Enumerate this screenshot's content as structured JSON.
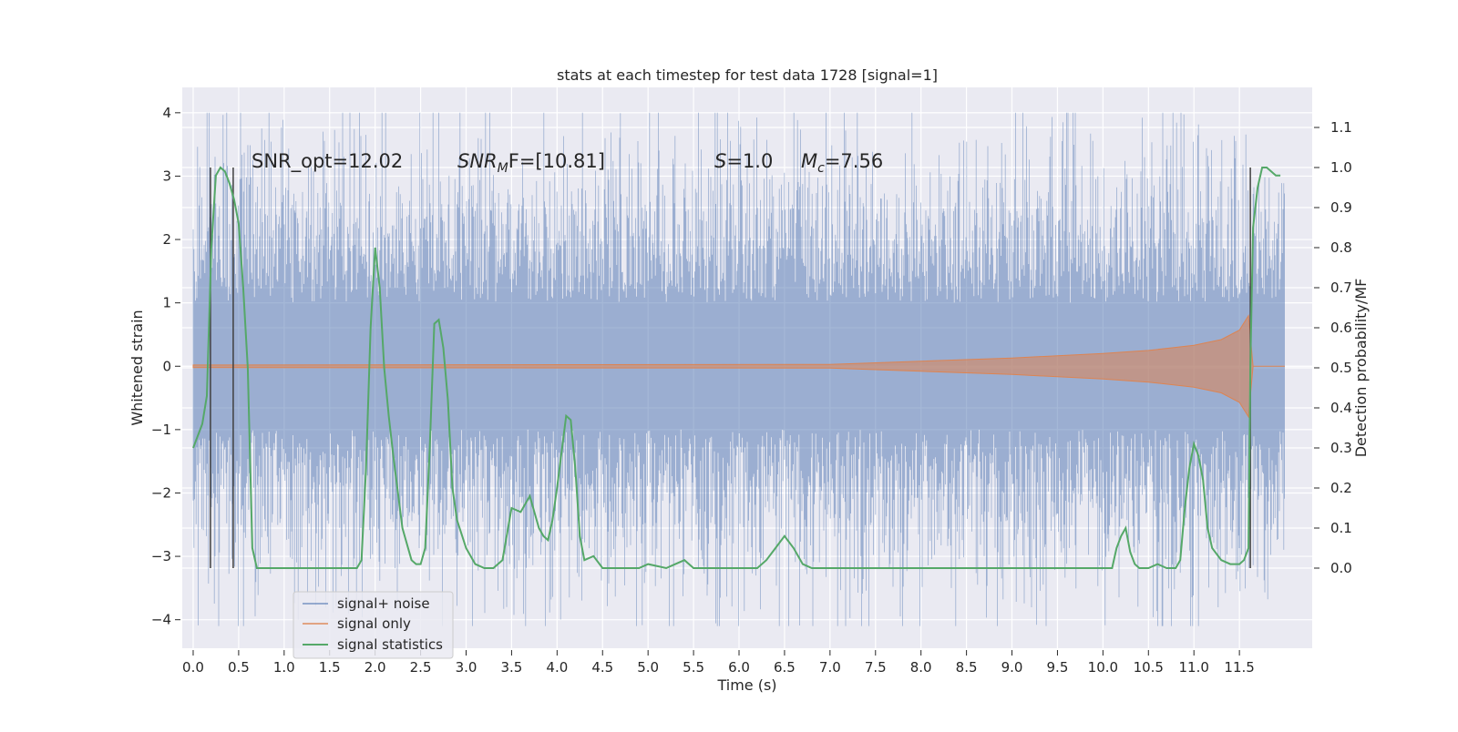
{
  "chart_data": {
    "type": "line",
    "title": "stats at each timestep for test data 1728 [signal=1]",
    "xlabel": "Time (s)",
    "ylabel": "Whitened strain",
    "ylabel_right": "Detection probability/MF",
    "xlim": [
      -0.12,
      12.3
    ],
    "ylim": [
      -4.45,
      4.4
    ],
    "ylim_right": [
      -0.2,
      1.2
    ],
    "x_ticks": [
      "0.0",
      "0.5",
      "1.0",
      "1.5",
      "2.0",
      "2.5",
      "3.0",
      "3.5",
      "4.0",
      "4.5",
      "5.0",
      "5.5",
      "6.0",
      "6.5",
      "7.0",
      "7.5",
      "8.0",
      "8.5",
      "9.0",
      "9.5",
      "10.0",
      "10.5",
      "11.0",
      "11.5"
    ],
    "y_ticks": [
      "4",
      "3",
      "2",
      "1",
      "0",
      "−1",
      "−2",
      "−3",
      "−4"
    ],
    "y_ticks_right": [
      "1.1",
      "1.0",
      "0.9",
      "0.8",
      "0.7",
      "0.6",
      "0.5",
      "0.4",
      "0.3",
      "0.2",
      "0.1",
      "0.0"
    ],
    "grid": true,
    "legend_placement": "lower-left",
    "annotations": {
      "snr_opt": "SNR_opt=12.02",
      "snr_mf_prefix": "SNR",
      "snr_mf_sub": "M",
      "snr_mf_suffix": "F=[10.81]",
      "s_label": "S",
      "s_value": "=1.0",
      "mc_label": "M",
      "mc_sub": "c",
      "mc_value": "=7.56"
    },
    "vertical_markers_x": [
      0.19,
      0.44,
      11.62
    ],
    "series": [
      {
        "name": "signal+ noise",
        "color": "#4c72b0",
        "x_range": [
          0.0,
          12.0
        ],
        "y_range": [
          -4.1,
          4.0
        ],
        "envelope_sigma": 1.0
      },
      {
        "name": "signal only",
        "color": "#dd8452",
        "x": [
          0.0,
          7.0,
          8.0,
          9.0,
          10.0,
          10.5,
          11.0,
          11.3,
          11.5,
          11.6,
          11.65,
          12.0
        ],
        "amplitude": [
          0.02,
          0.03,
          0.08,
          0.13,
          0.2,
          0.25,
          0.33,
          0.42,
          0.57,
          0.8,
          0.0,
          0.0
        ]
      },
      {
        "name": "signal statistics",
        "color": "#55a868",
        "axis": "right",
        "x": [
          0.0,
          0.1,
          0.15,
          0.2,
          0.25,
          0.3,
          0.35,
          0.4,
          0.45,
          0.5,
          0.55,
          0.6,
          0.65,
          0.7,
          0.8,
          1.0,
          1.2,
          1.4,
          1.6,
          1.8,
          1.85,
          1.9,
          1.95,
          2.0,
          2.05,
          2.1,
          2.15,
          2.2,
          2.3,
          2.4,
          2.45,
          2.5,
          2.55,
          2.6,
          2.65,
          2.7,
          2.75,
          2.8,
          2.85,
          2.9,
          3.0,
          3.1,
          3.2,
          3.3,
          3.4,
          3.5,
          3.6,
          3.7,
          3.8,
          3.85,
          3.9,
          3.95,
          4.0,
          4.1,
          4.15,
          4.2,
          4.25,
          4.3,
          4.4,
          4.5,
          4.6,
          4.7,
          4.8,
          4.9,
          5.0,
          5.2,
          5.3,
          5.4,
          5.5,
          5.6,
          6.0,
          6.2,
          6.3,
          6.4,
          6.5,
          6.6,
          6.7,
          6.8,
          7.0,
          7.5,
          8.0,
          9.0,
          10.0,
          10.1,
          10.15,
          10.2,
          10.25,
          10.3,
          10.35,
          10.4,
          10.5,
          10.6,
          10.7,
          10.8,
          10.85,
          10.9,
          10.95,
          11.0,
          11.05,
          11.1,
          11.15,
          11.2,
          11.3,
          11.4,
          11.5,
          11.55,
          11.6,
          11.62,
          11.65,
          11.7,
          11.75,
          11.8,
          11.85,
          11.9,
          11.95
        ],
        "y": [
          0.3,
          0.36,
          0.43,
          0.8,
          0.98,
          1.0,
          0.99,
          0.96,
          0.92,
          0.86,
          0.7,
          0.5,
          0.05,
          0.0,
          0.0,
          0.0,
          0.0,
          0.0,
          0.0,
          0.0,
          0.02,
          0.25,
          0.6,
          0.8,
          0.7,
          0.5,
          0.38,
          0.28,
          0.1,
          0.02,
          0.01,
          0.01,
          0.05,
          0.3,
          0.61,
          0.62,
          0.55,
          0.42,
          0.2,
          0.12,
          0.05,
          0.01,
          0.0,
          0.0,
          0.02,
          0.15,
          0.14,
          0.18,
          0.1,
          0.08,
          0.07,
          0.12,
          0.2,
          0.38,
          0.37,
          0.25,
          0.08,
          0.02,
          0.03,
          0.0,
          0.0,
          0.0,
          0.0,
          0.0,
          0.01,
          0.0,
          0.01,
          0.02,
          0.0,
          0.0,
          0.0,
          0.0,
          0.02,
          0.05,
          0.08,
          0.05,
          0.01,
          0.0,
          0.0,
          0.0,
          0.0,
          0.0,
          0.0,
          0.0,
          0.05,
          0.08,
          0.1,
          0.04,
          0.01,
          0.0,
          0.0,
          0.01,
          0.0,
          0.0,
          0.02,
          0.15,
          0.25,
          0.31,
          0.28,
          0.22,
          0.1,
          0.05,
          0.02,
          0.01,
          0.01,
          0.02,
          0.05,
          0.5,
          0.85,
          0.95,
          1.0,
          1.0,
          0.99,
          0.98,
          0.98
        ]
      }
    ]
  }
}
